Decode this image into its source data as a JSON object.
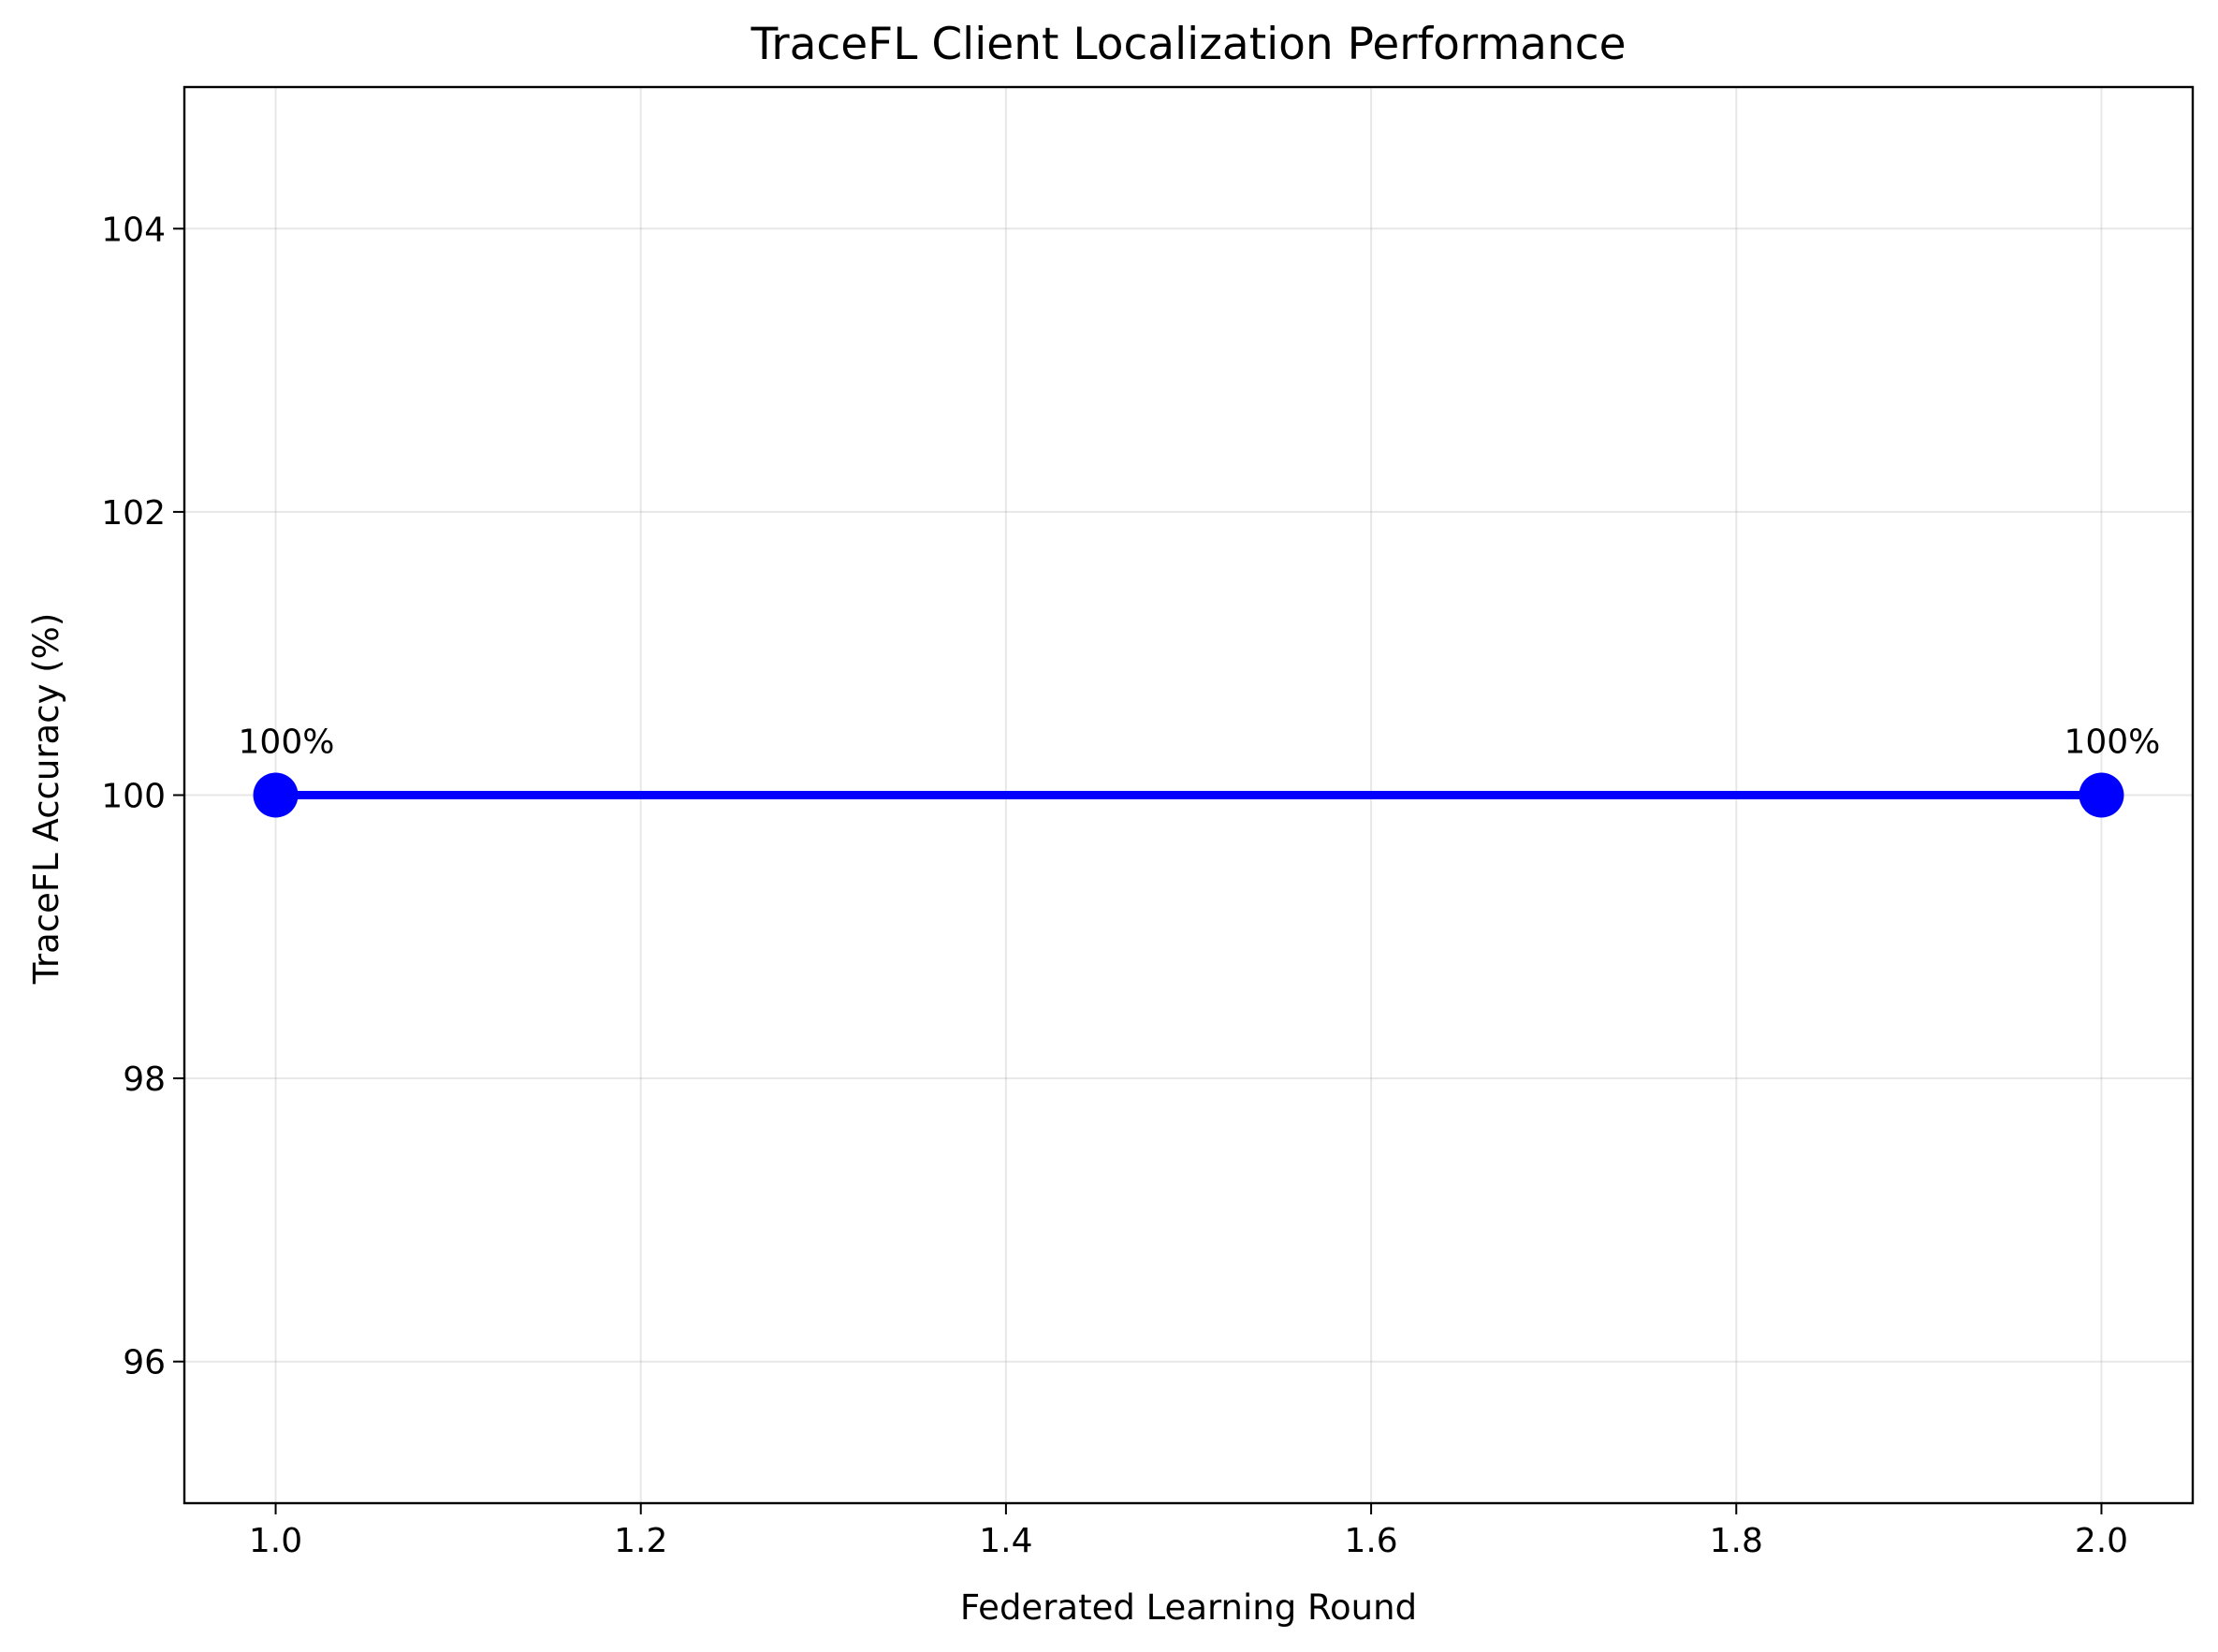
{
  "chart_data": {
    "type": "line",
    "title": "TraceFL Client Localization Performance",
    "xlabel": "Federated Learning Round",
    "ylabel": "TraceFL Accuracy (%)",
    "xlim": [
      0.95,
      2.05
    ],
    "ylim": [
      95,
      105
    ],
    "x_ticks": [
      1.0,
      1.2,
      1.4,
      1.6,
      1.8,
      2.0
    ],
    "x_tick_labels": [
      "1.0",
      "1.2",
      "1.4",
      "1.6",
      "1.8",
      "2.0"
    ],
    "y_ticks": [
      96,
      98,
      100,
      102,
      104
    ],
    "y_tick_labels": [
      "96",
      "98",
      "100",
      "102",
      "104"
    ],
    "grid": true,
    "legend": "none",
    "series": [
      {
        "x": [
          1,
          2
        ],
        "values": [
          100,
          100
        ],
        "color": "#0000ff",
        "marker": "circle",
        "point_labels": [
          "100%",
          "100%"
        ]
      }
    ]
  }
}
